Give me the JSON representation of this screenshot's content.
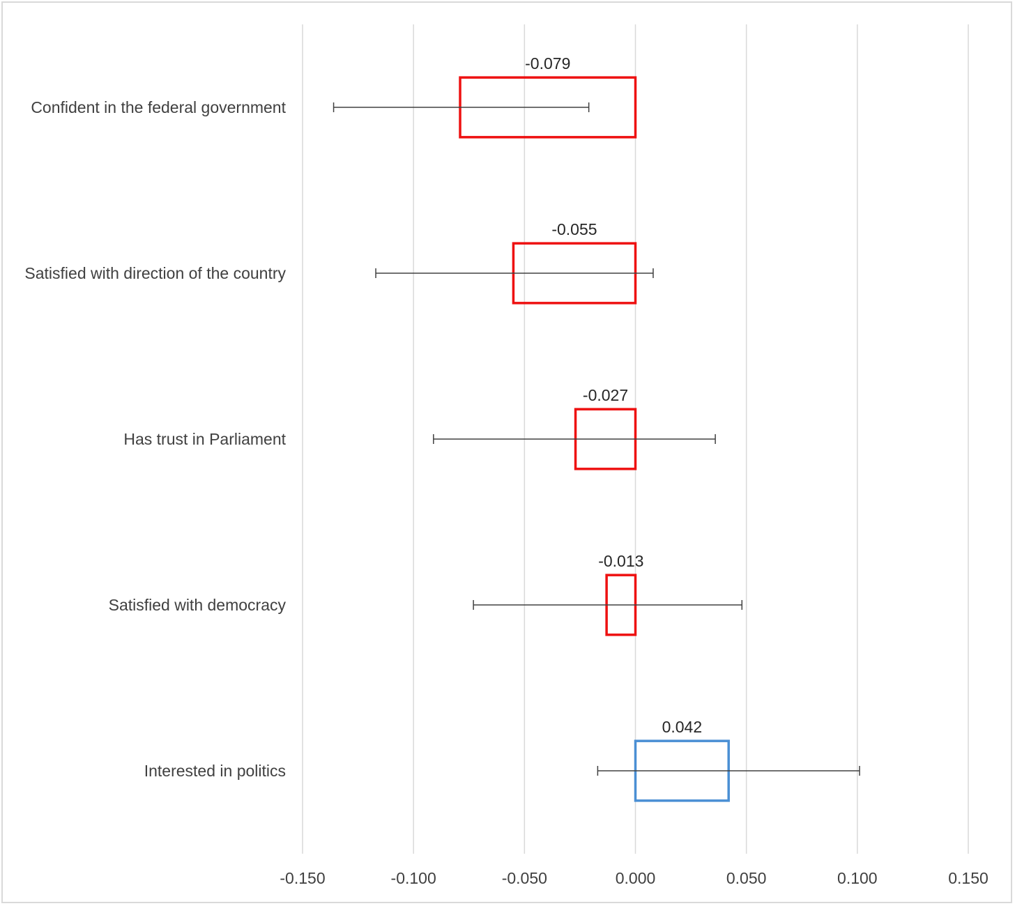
{
  "chart_data": {
    "type": "bar",
    "orientation": "horizontal",
    "categories": [
      "Confident in the federal government",
      "Satisfied with direction of the country",
      "Has trust in Parliament",
      "Satisfied with democracy",
      "Interested in politics"
    ],
    "values": [
      -0.079,
      -0.055,
      -0.027,
      -0.013,
      0.042
    ],
    "data_labels": [
      "-0.079",
      "-0.055",
      "-0.027",
      "-0.013",
      "0.042"
    ],
    "error_bars": [
      [
        -0.136,
        -0.021
      ],
      [
        -0.117,
        0.008
      ],
      [
        -0.091,
        0.036
      ],
      [
        -0.073,
        0.048
      ],
      [
        -0.017,
        0.101
      ]
    ],
    "xlim": [
      -0.15,
      0.15
    ],
    "x_ticks": [
      -0.15,
      -0.1,
      -0.05,
      0,
      0.05,
      0.1,
      0.15
    ],
    "x_tick_labels": [
      "-0.150",
      "-0.100",
      "-0.050",
      "0.000",
      "0.050",
      "0.100",
      "0.150"
    ],
    "grid": "vertical",
    "legend": "none",
    "title": "",
    "xlabel": "",
    "ylabel": "",
    "colors": {
      "negative": "#ee1111",
      "positive": "#4a8fd4",
      "error_bar": "#404040",
      "grid": "#d9d9d9"
    }
  }
}
